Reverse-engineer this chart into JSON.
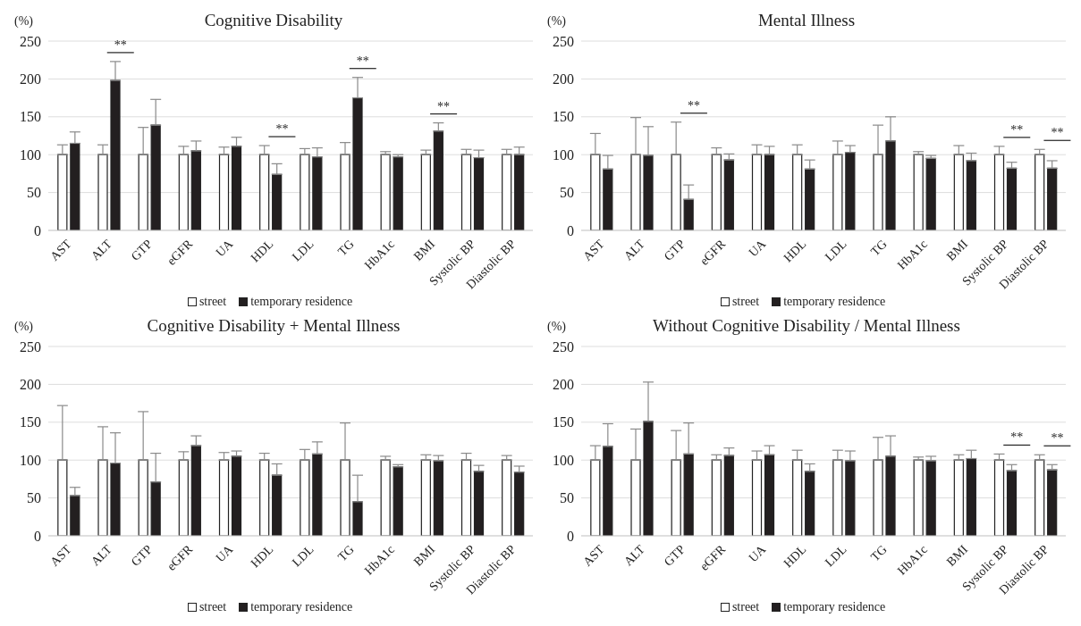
{
  "chart_data": [
    {
      "type": "bar",
      "title": "Cognitive Disability",
      "ylabel": "(%)",
      "categories": [
        "AST",
        "ALT",
        "GTP",
        "eGFR",
        "UA",
        "HDL",
        "LDL",
        "TG",
        "HbA1c",
        "BMI",
        "Systolic BP",
        "Diastolic BP"
      ],
      "ylim": [
        0,
        250
      ],
      "yticks": [
        0,
        50,
        100,
        150,
        200,
        250
      ],
      "grid": "y",
      "legend": "bottom",
      "series": [
        {
          "name": "street",
          "color": "#ffffff",
          "values": [
            100,
            100,
            100,
            100,
            100,
            100,
            100,
            100,
            100,
            100,
            100,
            100
          ],
          "errors": [
            [
              100,
              113
            ],
            [
              100,
              113
            ],
            [
              100,
              136
            ],
            [
              100,
              111
            ],
            [
              100,
              110
            ],
            [
              100,
              112
            ],
            [
              100,
              108
            ],
            [
              100,
              116
            ],
            [
              100,
              104
            ],
            [
              100,
              106
            ],
            [
              100,
              107
            ],
            [
              100,
              107
            ]
          ]
        },
        {
          "name": "temporary residence",
          "color": "#231f20",
          "values": [
            115,
            198,
            139,
            105,
            111,
            74,
            97,
            175,
            97,
            131,
            96,
            100
          ],
          "errors": [
            [
              115,
              130
            ],
            [
              198,
              223
            ],
            [
              139,
              173
            ],
            [
              105,
              118
            ],
            [
              111,
              123
            ],
            [
              74,
              88
            ],
            [
              97,
              109
            ],
            [
              175,
              202
            ],
            [
              97,
              100
            ],
            [
              131,
              142
            ],
            [
              96,
              106
            ],
            [
              100,
              110
            ]
          ]
        }
      ],
      "annotations": [
        {
          "text": "**",
          "x": "ALT",
          "y": 223
        },
        {
          "text": "**",
          "x": "HDL",
          "y": 112
        },
        {
          "text": "**",
          "x": "TG",
          "y": 202
        },
        {
          "text": "**",
          "x": "BMI",
          "y": 142
        }
      ]
    },
    {
      "type": "bar",
      "title": "Mental Illness",
      "ylabel": "(%)",
      "categories": [
        "AST",
        "ALT",
        "GTP",
        "eGFR",
        "UA",
        "HDL",
        "LDL",
        "TG",
        "HbA1c",
        "BMI",
        "Systolic BP",
        "Diastolic BP"
      ],
      "ylim": [
        0,
        250
      ],
      "yticks": [
        0,
        50,
        100,
        150,
        200,
        250
      ],
      "grid": "y",
      "legend": "bottom",
      "series": [
        {
          "name": "street",
          "color": "#ffffff",
          "values": [
            100,
            100,
            100,
            100,
            100,
            100,
            100,
            100,
            100,
            100,
            100,
            100
          ],
          "errors": [
            [
              100,
              128
            ],
            [
              100,
              149
            ],
            [
              100,
              143
            ],
            [
              100,
              109
            ],
            [
              100,
              113
            ],
            [
              100,
              113
            ],
            [
              100,
              118
            ],
            [
              100,
              139
            ],
            [
              100,
              104
            ],
            [
              100,
              112
            ],
            [
              100,
              111
            ],
            [
              100,
              107
            ]
          ]
        },
        {
          "name": "temporary residence",
          "color": "#231f20",
          "values": [
            81,
            99,
            41,
            93,
            100,
            81,
            103,
            118,
            95,
            92,
            82,
            82
          ],
          "errors": [
            [
              81,
              99
            ],
            [
              99,
              137
            ],
            [
              41,
              60
            ],
            [
              93,
              101
            ],
            [
              100,
              111
            ],
            [
              81,
              93
            ],
            [
              103,
              112
            ],
            [
              118,
              150
            ],
            [
              95,
              99
            ],
            [
              92,
              102
            ],
            [
              82,
              90
            ],
            [
              82,
              92
            ]
          ]
        }
      ],
      "annotations": [
        {
          "text": "**",
          "x": "GTP",
          "y": 143
        },
        {
          "text": "**",
          "x": "Systolic BP",
          "y": 111
        },
        {
          "text": "**",
          "x": "Diastolic BP",
          "y": 107
        }
      ]
    },
    {
      "type": "bar",
      "title": "Cognitive Disability + Mental Illness",
      "ylabel": "(%)",
      "categories": [
        "AST",
        "ALT",
        "GTP",
        "eGFR",
        "UA",
        "HDL",
        "LDL",
        "TG",
        "HbA1c",
        "BMI",
        "Systolic BP",
        "Diastolic BP"
      ],
      "ylim": [
        0,
        250
      ],
      "yticks": [
        0,
        50,
        100,
        150,
        200,
        250
      ],
      "grid": "y",
      "legend": "bottom",
      "series": [
        {
          "name": "street",
          "color": "#ffffff",
          "values": [
            100,
            100,
            100,
            100,
            100,
            100,
            100,
            100,
            100,
            100,
            100,
            100
          ],
          "errors": [
            [
              100,
              172
            ],
            [
              100,
              144
            ],
            [
              100,
              164
            ],
            [
              100,
              111
            ],
            [
              100,
              110
            ],
            [
              100,
              109
            ],
            [
              100,
              114
            ],
            [
              100,
              149
            ],
            [
              100,
              105
            ],
            [
              100,
              107
            ],
            [
              100,
              109
            ],
            [
              100,
              106
            ]
          ]
        },
        {
          "name": "temporary residence",
          "color": "#231f20",
          "values": [
            53,
            96,
            71,
            119,
            105,
            80,
            108,
            45,
            91,
            99,
            85,
            84
          ],
          "errors": [
            [
              53,
              64
            ],
            [
              96,
              136
            ],
            [
              71,
              109
            ],
            [
              119,
              132
            ],
            [
              105,
              112
            ],
            [
              80,
              95
            ],
            [
              108,
              124
            ],
            [
              45,
              80
            ],
            [
              91,
              94
            ],
            [
              99,
              106
            ],
            [
              85,
              93
            ],
            [
              84,
              92
            ]
          ]
        }
      ]
    },
    {
      "type": "bar",
      "title": "Without Cognitive Disability / Mental Illness",
      "ylabel": "(%)",
      "categories": [
        "AST",
        "ALT",
        "GTP",
        "eGFR",
        "UA",
        "HDL",
        "LDL",
        "TG",
        "HbA1c",
        "BMI",
        "Systolic BP",
        "Diastolic BP"
      ],
      "ylim": [
        0,
        250
      ],
      "yticks": [
        0,
        50,
        100,
        150,
        200,
        250
      ],
      "grid": "y",
      "legend": "bottom",
      "series": [
        {
          "name": "street",
          "color": "#ffffff",
          "values": [
            100,
            100,
            100,
            100,
            100,
            100,
            100,
            100,
            100,
            100,
            100,
            100
          ],
          "errors": [
            [
              100,
              119
            ],
            [
              100,
              141
            ],
            [
              100,
              139
            ],
            [
              100,
              107
            ],
            [
              100,
              112
            ],
            [
              100,
              113
            ],
            [
              100,
              113
            ],
            [
              100,
              130
            ],
            [
              100,
              104
            ],
            [
              100,
              107
            ],
            [
              100,
              108
            ],
            [
              100,
              107
            ]
          ]
        },
        {
          "name": "temporary residence",
          "color": "#231f20",
          "values": [
            118,
            151,
            108,
            106,
            107,
            85,
            99,
            105,
            99,
            102,
            86,
            87
          ],
          "errors": [
            [
              118,
              148
            ],
            [
              151,
              203
            ],
            [
              108,
              149
            ],
            [
              106,
              116
            ],
            [
              107,
              119
            ],
            [
              85,
              95
            ],
            [
              99,
              112
            ],
            [
              105,
              132
            ],
            [
              99,
              105
            ],
            [
              102,
              113
            ],
            [
              86,
              94
            ],
            [
              87,
              94
            ]
          ]
        }
      ],
      "annotations": [
        {
          "text": "**",
          "x": "Systolic BP",
          "y": 108
        },
        {
          "text": "**",
          "x": "Diastolic BP",
          "y": 107
        }
      ]
    }
  ]
}
